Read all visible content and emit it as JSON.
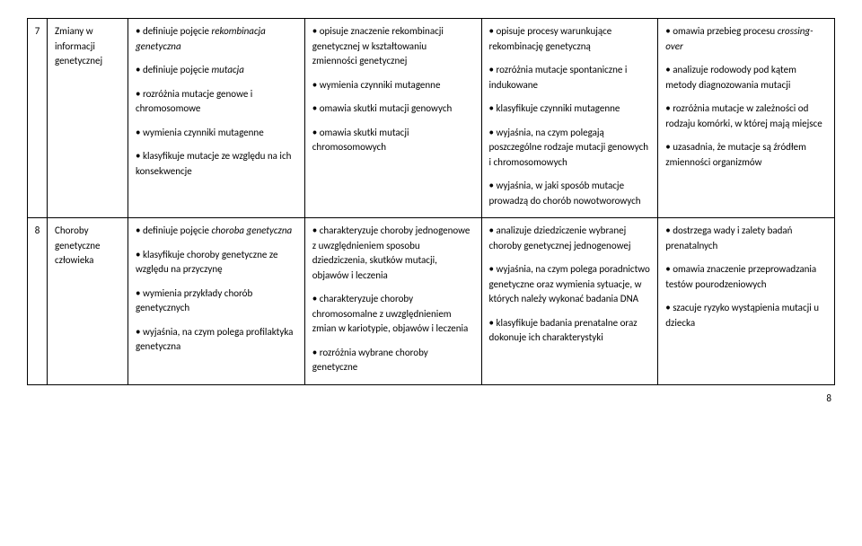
{
  "page_number": "8",
  "rows": [
    {
      "num": "7",
      "topic": "Zmiany w informacji genetycznej",
      "c1": [
        {
          "pre": "• definiuje pojęcie ",
          "it": "rekombinacja genetyczna"
        },
        {
          "pre": "• definiuje pojęcie ",
          "it": "mutacja"
        },
        {
          "pre": "• rozróżnia mutacje genowe i chromosomowe"
        },
        {
          "pre": "• wymienia czynniki mutagenne"
        },
        {
          "pre": "• klasyfikuje mutacje ze względu na ich konsekwencje"
        }
      ],
      "c2": [
        {
          "pre": "• opisuje znaczenie rekombinacji genetycznej w kształtowaniu zmienności genetycznej"
        },
        {
          "pre": "• wymienia czynniki mutagenne"
        },
        {
          "pre": "• omawia skutki mutacji genowych"
        },
        {
          "pre": "• omawia skutki mutacji chromosomowych"
        }
      ],
      "c3": [
        {
          "pre": "• opisuje procesy warunkujące rekombinację genetyczną"
        },
        {
          "pre": "• rozróżnia mutacje spontaniczne i indukowane"
        },
        {
          "pre": "• klasyfikuje czynniki mutagenne"
        },
        {
          "pre": "• wyjaśnia, na czym polegają poszczególne rodzaje mutacji genowych i chromosomowych"
        },
        {
          "pre": "• wyjaśnia, w jaki sposób mutacje prowadzą do chorób nowotworowych"
        }
      ],
      "c4": [
        {
          "pre": "• omawia przebieg procesu ",
          "it": "crossing-over"
        },
        {
          "pre": "• analizuje rodowody pod kątem metody diagnozowania mutacji"
        },
        {
          "pre": "• rozróżnia mutacje w zależności od rodzaju komórki, w której mają miejsce"
        },
        {
          "pre": "• uzasadnia, że mutacje są źródłem zmienności organizmów"
        }
      ]
    },
    {
      "num": "8",
      "topic": "Choroby genetyczne człowieka",
      "c1": [
        {
          "pre": "• definiuje pojęcie ",
          "it": "choroba genetyczna"
        },
        {
          "pre": "• klasyfikuje choroby genetyczne ze względu na przyczynę"
        },
        {
          "pre": "• wymienia przykłady chorób genetycznych"
        },
        {
          "pre": "• wyjaśnia, na czym polega profilaktyka genetyczna"
        }
      ],
      "c2": [
        {
          "pre": "• charakteryzuje choroby jednogenowe z uwzględnieniem sposobu dziedziczenia, skutków mutacji, objawów i leczenia"
        },
        {
          "pre": "• charakteryzuje choroby chromosomalne z uwzględnieniem zmian w kariotypie, objawów i leczenia"
        },
        {
          "pre": "• rozróżnia wybrane choroby genetyczne"
        }
      ],
      "c3": [
        {
          "pre": "• analizuje dziedziczenie wybranej choroby genetycznej jednogenowej"
        },
        {
          "pre": "• wyjaśnia, na czym polega poradnictwo genetyczne oraz wymienia sytuacje, w których należy wykonać badania DNA"
        },
        {
          "pre": "• klasyfikuje badania prenatalne oraz dokonuje ich charakterystyki"
        }
      ],
      "c4": [
        {
          "pre": "• dostrzega wady i zalety badań prenatalnych"
        },
        {
          "pre": "• omawia znaczenie przeprowadzania testów pourodzeniowych"
        },
        {
          "pre": "• szacuje ryzyko wystąpienia mutacji u dziecka"
        }
      ]
    }
  ]
}
